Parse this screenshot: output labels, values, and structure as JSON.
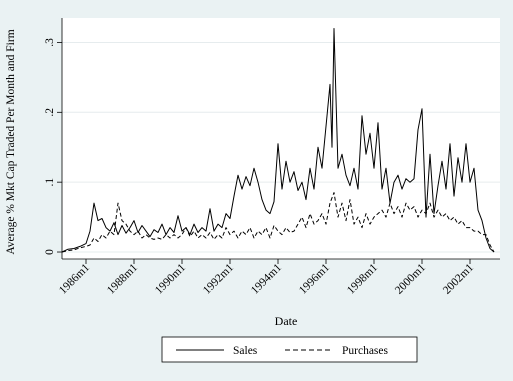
{
  "chart_data": {
    "type": "line",
    "xlabel": "Date",
    "ylabel": "Average % Mkt Cap Traded Per Month and Firm",
    "x_ticks": [
      "1986m1",
      "1988m1",
      "1990m1",
      "1992m1",
      "1994m1",
      "1996m1",
      "1998m1",
      "2000m1",
      "2002m1"
    ],
    "y_ticks": [
      "0",
      ".1",
      ".2",
      ".3"
    ],
    "ylim": [
      -0.01,
      0.335
    ],
    "xlim": [
      "1985m1",
      "2003m4"
    ],
    "grid": true,
    "legend_position": "bottom",
    "series": [
      {
        "name": "Sales",
        "dash": "solid",
        "points": [
          [
            "1985m1",
            0.0
          ],
          [
            "1985m4",
            0.004
          ],
          [
            "1985m7",
            0.005
          ],
          [
            "1985m10",
            0.008
          ],
          [
            "1986m1",
            0.012
          ],
          [
            "1986m3",
            0.03
          ],
          [
            "1986m5",
            0.07
          ],
          [
            "1986m7",
            0.045
          ],
          [
            "1986m9",
            0.048
          ],
          [
            "1986m11",
            0.035
          ],
          [
            "1987m1",
            0.03
          ],
          [
            "1987m3",
            0.042
          ],
          [
            "1987m5",
            0.025
          ],
          [
            "1987m7",
            0.038
          ],
          [
            "1987m9",
            0.027
          ],
          [
            "1987m11",
            0.035
          ],
          [
            "1988m1",
            0.045
          ],
          [
            "1988m3",
            0.028
          ],
          [
            "1988m5",
            0.038
          ],
          [
            "1988m7",
            0.03
          ],
          [
            "1988m9",
            0.022
          ],
          [
            "1988m11",
            0.032
          ],
          [
            "1989m1",
            0.028
          ],
          [
            "1989m3",
            0.04
          ],
          [
            "1989m5",
            0.025
          ],
          [
            "1989m7",
            0.035
          ],
          [
            "1989m9",
            0.028
          ],
          [
            "1989m11",
            0.052
          ],
          [
            "1990m1",
            0.03
          ],
          [
            "1990m3",
            0.035
          ],
          [
            "1990m5",
            0.025
          ],
          [
            "1990m7",
            0.04
          ],
          [
            "1990m9",
            0.028
          ],
          [
            "1990m11",
            0.035
          ],
          [
            "1991m1",
            0.03
          ],
          [
            "1991m3",
            0.062
          ],
          [
            "1991m5",
            0.03
          ],
          [
            "1991m7",
            0.04
          ],
          [
            "1991m9",
            0.035
          ],
          [
            "1991m11",
            0.055
          ],
          [
            "1992m1",
            0.048
          ],
          [
            "1992m3",
            0.08
          ],
          [
            "1992m5",
            0.11
          ],
          [
            "1992m7",
            0.09
          ],
          [
            "1992m9",
            0.108
          ],
          [
            "1992m11",
            0.095
          ],
          [
            "1993m1",
            0.12
          ],
          [
            "1993m3",
            0.1
          ],
          [
            "1993m5",
            0.075
          ],
          [
            "1993m7",
            0.06
          ],
          [
            "1993m9",
            0.055
          ],
          [
            "1993m11",
            0.072
          ],
          [
            "1994m1",
            0.155
          ],
          [
            "1994m3",
            0.09
          ],
          [
            "1994m5",
            0.13
          ],
          [
            "1994m7",
            0.1
          ],
          [
            "1994m9",
            0.115
          ],
          [
            "1994m11",
            0.088
          ],
          [
            "1995m1",
            0.1
          ],
          [
            "1995m3",
            0.075
          ],
          [
            "1995m5",
            0.12
          ],
          [
            "1995m7",
            0.09
          ],
          [
            "1995m9",
            0.15
          ],
          [
            "1995m11",
            0.12
          ],
          [
            "1996m1",
            0.18
          ],
          [
            "1996m3",
            0.24
          ],
          [
            "1996m4",
            0.15
          ],
          [
            "1996m5",
            0.32
          ],
          [
            "1996m7",
            0.12
          ],
          [
            "1996m9",
            0.14
          ],
          [
            "1996m11",
            0.11
          ],
          [
            "1997m1",
            0.095
          ],
          [
            "1997m3",
            0.12
          ],
          [
            "1997m5",
            0.09
          ],
          [
            "1997m7",
            0.195
          ],
          [
            "1997m9",
            0.14
          ],
          [
            "1997m11",
            0.17
          ],
          [
            "1998m1",
            0.12
          ],
          [
            "1998m3",
            0.185
          ],
          [
            "1998m5",
            0.09
          ],
          [
            "1998m7",
            0.12
          ],
          [
            "1998m9",
            0.07
          ],
          [
            "1998m11",
            0.1
          ],
          [
            "1999m1",
            0.11
          ],
          [
            "1999m3",
            0.09
          ],
          [
            "1999m5",
            0.105
          ],
          [
            "1999m7",
            0.1
          ],
          [
            "1999m9",
            0.105
          ],
          [
            "1999m11",
            0.175
          ],
          [
            "2000m1",
            0.205
          ],
          [
            "2000m3",
            0.05
          ],
          [
            "2000m5",
            0.14
          ],
          [
            "2000m7",
            0.055
          ],
          [
            "2000m9",
            0.095
          ],
          [
            "2000m11",
            0.13
          ],
          [
            "2001m1",
            0.09
          ],
          [
            "2001m3",
            0.155
          ],
          [
            "2001m5",
            0.08
          ],
          [
            "2001m7",
            0.135
          ],
          [
            "2001m9",
            0.1
          ],
          [
            "2001m11",
            0.155
          ],
          [
            "2002m1",
            0.1
          ],
          [
            "2002m3",
            0.12
          ],
          [
            "2002m5",
            0.06
          ],
          [
            "2002m7",
            0.045
          ],
          [
            "2002m9",
            0.02
          ],
          [
            "2002m11",
            0.005
          ],
          [
            "2003m1",
            0.0
          ]
        ]
      },
      {
        "name": "Purchases",
        "dash": "dashed",
        "points": [
          [
            "1985m1",
            0.0
          ],
          [
            "1985m4",
            0.002
          ],
          [
            "1985m7",
            0.003
          ],
          [
            "1985m10",
            0.006
          ],
          [
            "1986m1",
            0.008
          ],
          [
            "1986m3",
            0.01
          ],
          [
            "1986m5",
            0.02
          ],
          [
            "1986m7",
            0.015
          ],
          [
            "1986m9",
            0.025
          ],
          [
            "1986m11",
            0.02
          ],
          [
            "1987m1",
            0.03
          ],
          [
            "1987m3",
            0.025
          ],
          [
            "1987m5",
            0.07
          ],
          [
            "1987m7",
            0.045
          ],
          [
            "1987m9",
            0.04
          ],
          [
            "1987m11",
            0.03
          ],
          [
            "1988m1",
            0.025
          ],
          [
            "1988m3",
            0.03
          ],
          [
            "1988m5",
            0.02
          ],
          [
            "1988m7",
            0.025
          ],
          [
            "1988m9",
            0.02
          ],
          [
            "1988m11",
            0.018
          ],
          [
            "1989m1",
            0.02
          ],
          [
            "1989m3",
            0.018
          ],
          [
            "1989m5",
            0.025
          ],
          [
            "1989m7",
            0.02
          ],
          [
            "1989m9",
            0.025
          ],
          [
            "1989m11",
            0.02
          ],
          [
            "1990m1",
            0.025
          ],
          [
            "1990m3",
            0.035
          ],
          [
            "1990m5",
            0.022
          ],
          [
            "1990m7",
            0.03
          ],
          [
            "1990m9",
            0.02
          ],
          [
            "1990m11",
            0.025
          ],
          [
            "1991m1",
            0.02
          ],
          [
            "1991m3",
            0.028
          ],
          [
            "1991m5",
            0.018
          ],
          [
            "1991m7",
            0.025
          ],
          [
            "1991m9",
            0.02
          ],
          [
            "1991m11",
            0.035
          ],
          [
            "1992m1",
            0.025
          ],
          [
            "1992m3",
            0.03
          ],
          [
            "1992m5",
            0.02
          ],
          [
            "1992m7",
            0.03
          ],
          [
            "1992m9",
            0.025
          ],
          [
            "1992m11",
            0.035
          ],
          [
            "1993m1",
            0.02
          ],
          [
            "1993m3",
            0.03
          ],
          [
            "1993m5",
            0.025
          ],
          [
            "1993m7",
            0.035
          ],
          [
            "1993m9",
            0.02
          ],
          [
            "1993m11",
            0.038
          ],
          [
            "1994m1",
            0.03
          ],
          [
            "1994m3",
            0.025
          ],
          [
            "1994m5",
            0.035
          ],
          [
            "1994m7",
            0.028
          ],
          [
            "1994m9",
            0.03
          ],
          [
            "1994m11",
            0.04
          ],
          [
            "1995m1",
            0.05
          ],
          [
            "1995m3",
            0.035
          ],
          [
            "1995m5",
            0.055
          ],
          [
            "1995m7",
            0.04
          ],
          [
            "1995m9",
            0.045
          ],
          [
            "1995m11",
            0.055
          ],
          [
            "1996m1",
            0.04
          ],
          [
            "1996m3",
            0.07
          ],
          [
            "1996m5",
            0.085
          ],
          [
            "1996m7",
            0.05
          ],
          [
            "1996m9",
            0.07
          ],
          [
            "1996m11",
            0.045
          ],
          [
            "1997m1",
            0.075
          ],
          [
            "1997m3",
            0.04
          ],
          [
            "1997m5",
            0.05
          ],
          [
            "1997m7",
            0.035
          ],
          [
            "1997m9",
            0.055
          ],
          [
            "1997m11",
            0.04
          ],
          [
            "1998m1",
            0.05
          ],
          [
            "1998m3",
            0.055
          ],
          [
            "1998m5",
            0.06
          ],
          [
            "1998m7",
            0.05
          ],
          [
            "1998m9",
            0.07
          ],
          [
            "1998m11",
            0.055
          ],
          [
            "1999m1",
            0.065
          ],
          [
            "1999m3",
            0.05
          ],
          [
            "1999m5",
            0.07
          ],
          [
            "1999m7",
            0.06
          ],
          [
            "1999m9",
            0.065
          ],
          [
            "1999m11",
            0.05
          ],
          [
            "2000m1",
            0.06
          ],
          [
            "2000m3",
            0.055
          ],
          [
            "2000m5",
            0.07
          ],
          [
            "2000m7",
            0.05
          ],
          [
            "2000m9",
            0.06
          ],
          [
            "2000m11",
            0.05
          ],
          [
            "2001m1",
            0.055
          ],
          [
            "2001m3",
            0.045
          ],
          [
            "2001m5",
            0.05
          ],
          [
            "2001m7",
            0.04
          ],
          [
            "2001m9",
            0.045
          ],
          [
            "2001m11",
            0.035
          ],
          [
            "2002m1",
            0.035
          ],
          [
            "2002m3",
            0.03
          ],
          [
            "2002m5",
            0.03
          ],
          [
            "2002m7",
            0.025
          ],
          [
            "2002m9",
            0.025
          ],
          [
            "2002m11",
            0.01
          ],
          [
            "2003m1",
            0.0
          ]
        ]
      }
    ]
  }
}
